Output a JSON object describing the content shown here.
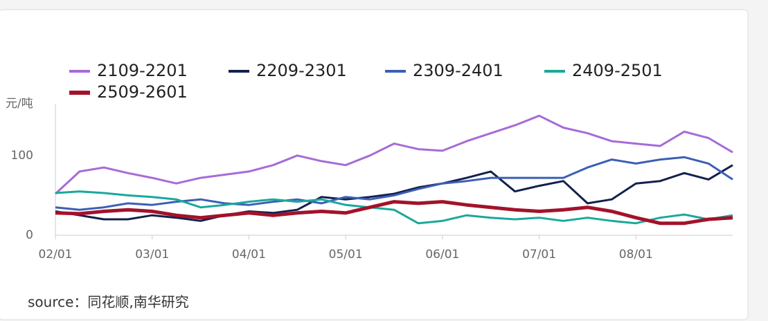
{
  "chart_data": {
    "type": "line",
    "y_label": "元/吨",
    "source": "source：同花顺,南华研究",
    "categories": [
      "02/01",
      null,
      null,
      null,
      "03/01",
      null,
      null,
      null,
      "04/01",
      null,
      null,
      null,
      "05/01",
      null,
      null,
      null,
      "06/01",
      null,
      null,
      null,
      "07/01",
      null,
      null,
      null,
      "08/01",
      null,
      null,
      null,
      null
    ],
    "ylim": [
      0,
      165
    ],
    "yticks": [
      0,
      100
    ],
    "grid": false,
    "series": [
      {
        "name": "2109-2201",
        "color": "#a66bd6",
        "width": 3,
        "values": [
          52,
          80,
          85,
          78,
          72,
          65,
          72,
          76,
          80,
          88,
          100,
          93,
          88,
          100,
          115,
          108,
          106,
          118,
          128,
          138,
          150,
          135,
          128,
          118,
          115,
          112,
          130,
          122,
          104
        ]
      },
      {
        "name": "2209-2301",
        "color": "#13204d",
        "width": 3,
        "values": [
          30,
          25,
          20,
          20,
          25,
          22,
          18,
          25,
          30,
          28,
          32,
          48,
          45,
          48,
          52,
          60,
          65,
          72,
          80,
          55,
          62,
          68,
          40,
          45,
          65,
          68,
          78,
          70,
          88
        ]
      },
      {
        "name": "2309-2401",
        "color": "#3b5fb5",
        "width": 3,
        "values": [
          35,
          32,
          35,
          40,
          38,
          42,
          45,
          40,
          38,
          42,
          45,
          40,
          48,
          45,
          50,
          58,
          65,
          68,
          72,
          72,
          72,
          72,
          85,
          95,
          90,
          95,
          98,
          90,
          70
        ]
      },
      {
        "name": "2409-2501",
        "color": "#1aa89c",
        "width": 3,
        "values": [
          53,
          55,
          53,
          50,
          48,
          45,
          35,
          38,
          42,
          45,
          42,
          45,
          38,
          35,
          32,
          15,
          18,
          25,
          22,
          20,
          22,
          18,
          22,
          18,
          15,
          22,
          26,
          20,
          25
        ]
      },
      {
        "name": "2509-2601",
        "color": "#a3122a",
        "width": 5,
        "values": [
          28,
          27,
          30,
          32,
          30,
          25,
          22,
          25,
          28,
          25,
          28,
          30,
          28,
          35,
          42,
          40,
          42,
          38,
          35,
          32,
          30,
          32,
          35,
          30,
          22,
          15,
          15,
          20,
          22
        ]
      }
    ]
  }
}
